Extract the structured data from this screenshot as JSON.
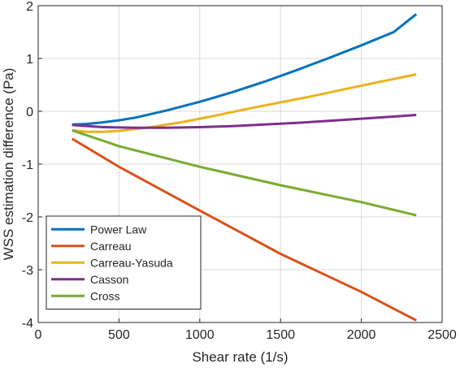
{
  "chart_data": {
    "type": "line",
    "title": "",
    "xlabel": "Shear rate (1/s)",
    "ylabel": "WSS estimation difference (Pa)",
    "xlim": [
      0,
      2500
    ],
    "ylim": [
      -4,
      2
    ],
    "xticks": [
      0,
      500,
      1000,
      1500,
      2000,
      2500
    ],
    "yticks": [
      -4,
      -3,
      -2,
      -1,
      0,
      1,
      2
    ],
    "grid": true,
    "legend_position": "bottom-left",
    "series": [
      {
        "name": "Power Law",
        "color": "#0072BD",
        "x": [
          210,
          300,
          400,
          500,
          600,
          700,
          800,
          1000,
          1200,
          1400,
          1600,
          1800,
          2000,
          2200,
          2340
        ],
        "y": [
          -0.25,
          -0.24,
          -0.21,
          -0.17,
          -0.12,
          -0.05,
          0.02,
          0.18,
          0.36,
          0.56,
          0.78,
          1.01,
          1.25,
          1.5,
          1.84
        ]
      },
      {
        "name": "Carreau",
        "color": "#D95319",
        "x": [
          210,
          500,
          1000,
          1500,
          2000,
          2340
        ],
        "y": [
          -0.52,
          -1.05,
          -1.88,
          -2.7,
          -3.42,
          -3.96
        ]
      },
      {
        "name": "Carreau-Yasuda",
        "color": "#EDB120",
        "x": [
          210,
          300,
          400,
          500,
          700,
          900,
          1100,
          1300,
          1500,
          1700,
          1900,
          2100,
          2340
        ],
        "y": [
          -0.36,
          -0.39,
          -0.39,
          -0.37,
          -0.3,
          -0.2,
          -0.08,
          0.05,
          0.17,
          0.29,
          0.42,
          0.55,
          0.7
        ]
      },
      {
        "name": "Casson",
        "color": "#7E2F8E",
        "x": [
          210,
          400,
          600,
          800,
          1000,
          1200,
          1400,
          1600,
          1800,
          2000,
          2200,
          2340
        ],
        "y": [
          -0.26,
          -0.3,
          -0.31,
          -0.31,
          -0.3,
          -0.28,
          -0.25,
          -0.22,
          -0.18,
          -0.14,
          -0.1,
          -0.07
        ]
      },
      {
        "name": "Cross",
        "color": "#77AC30",
        "x": [
          210,
          500,
          1000,
          1500,
          2000,
          2340
        ],
        "y": [
          -0.36,
          -0.66,
          -1.05,
          -1.4,
          -1.72,
          -1.97
        ]
      }
    ]
  }
}
